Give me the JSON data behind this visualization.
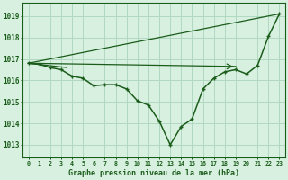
{
  "background_color": "#d8f0e0",
  "grid_color": "#b0d8c0",
  "line_color": "#1a5c1a",
  "marker_color": "#1a5c1a",
  "xlabel": "Graphe pression niveau de la mer (hPa)",
  "xlim": [
    -0.5,
    23.5
  ],
  "ylim": [
    1012.4,
    1019.6
  ],
  "yticks": [
    1013,
    1014,
    1015,
    1016,
    1017,
    1018,
    1019
  ],
  "xticks": [
    0,
    1,
    2,
    3,
    4,
    5,
    6,
    7,
    8,
    9,
    10,
    11,
    12,
    13,
    14,
    15,
    16,
    17,
    18,
    19,
    20,
    21,
    22,
    23
  ],
  "xtick_labels": [
    "0",
    "1",
    "2",
    "3",
    "4",
    "5",
    "6",
    "7",
    "8",
    "9",
    "10",
    "11",
    "12",
    "13",
    "14",
    "15",
    "16",
    "17",
    "18",
    "19",
    "20",
    "21",
    "22",
    "23"
  ],
  "series_diag": {
    "x": [
      0,
      23
    ],
    "y": [
      1016.8,
      1019.1
    ]
  },
  "series_flat1": {
    "x": [
      0,
      19
    ],
    "y": [
      1016.8,
      1016.65
    ]
  },
  "series_flat2": {
    "x": [
      0,
      3.5
    ],
    "y": [
      1016.8,
      1016.6
    ]
  },
  "main_series": {
    "x": [
      0,
      1,
      2,
      3,
      4,
      5,
      6,
      7,
      8,
      9,
      10,
      11,
      12,
      13,
      14,
      15,
      16,
      17,
      18,
      19,
      20,
      21,
      22,
      23
    ],
    "y": [
      1016.8,
      1016.75,
      1016.6,
      1016.5,
      1016.2,
      1016.1,
      1015.75,
      1015.8,
      1015.8,
      1015.6,
      1015.05,
      1014.85,
      1014.1,
      1013.0,
      1013.85,
      1014.2,
      1015.6,
      1016.1,
      1016.4,
      1016.5,
      1016.3,
      1016.7,
      1018.05,
      1019.1
    ]
  }
}
